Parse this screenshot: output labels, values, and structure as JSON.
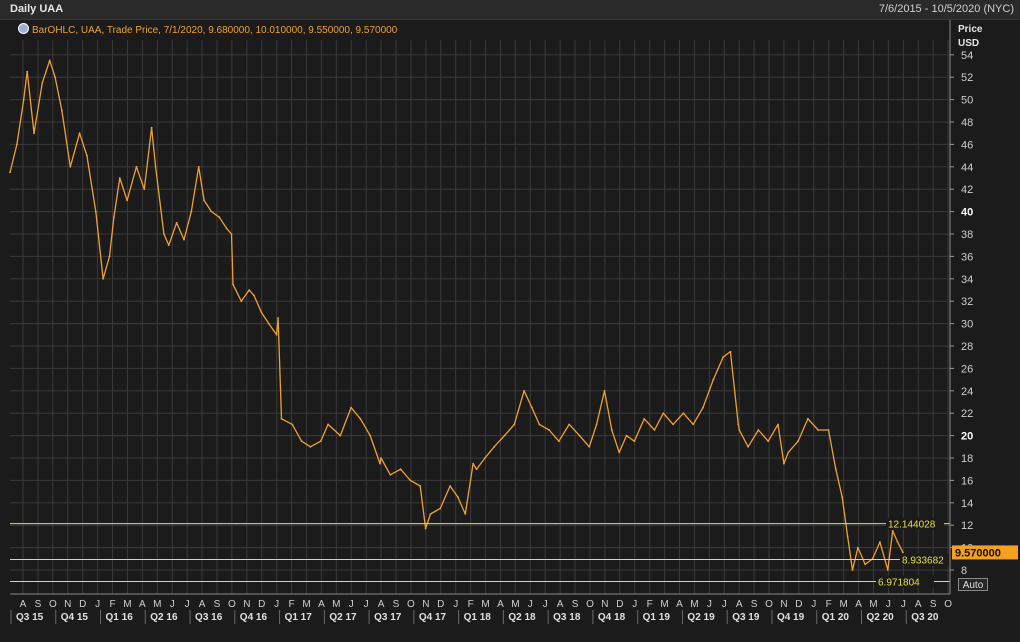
{
  "header": {
    "title": "Daily UAA",
    "date_range": "7/6/2015 - 10/5/2020 (NYC)"
  },
  "legend": {
    "text": "BarOHLC, UAA, Trade Price, 7/1/2020, 9.680000, 10.010000, 9.550000, 9.570000"
  },
  "auto_label": "Auto",
  "colors": {
    "background": "#1b1b1b",
    "grid": "#3a3a3a",
    "series": "#f0a030",
    "hline": "#e8e040",
    "last_price_bg": "#f5a020"
  },
  "chart_data": {
    "type": "line",
    "ylabel": "Price",
    "yunit": "USD",
    "ylim": [
      6,
      56
    ],
    "yticks": [
      8,
      10,
      12,
      14,
      16,
      18,
      20,
      22,
      24,
      26,
      28,
      30,
      32,
      34,
      36,
      38,
      40,
      42,
      44,
      46,
      48,
      50,
      52,
      54
    ],
    "bold_ticks": [
      20,
      40
    ],
    "x_months": [
      "A",
      "S",
      "O",
      "N",
      "D",
      "J",
      "F",
      "M",
      "A",
      "M",
      "J",
      "J",
      "A",
      "S",
      "O",
      "N",
      "D",
      "J",
      "F",
      "M",
      "A",
      "M",
      "J",
      "J",
      "A",
      "S",
      "O",
      "N",
      "D",
      "J",
      "F",
      "M",
      "A",
      "M",
      "J",
      "J",
      "A",
      "S",
      "O",
      "N",
      "D",
      "J",
      "F",
      "M",
      "A",
      "M",
      "J",
      "J",
      "A",
      "S",
      "O",
      "N",
      "D",
      "J",
      "F",
      "M",
      "A",
      "M",
      "J",
      "J",
      "A",
      "S",
      "O"
    ],
    "x_quarters": [
      "Q3 15",
      "Q4 15",
      "Q1 16",
      "Q2 16",
      "Q3 16",
      "Q4 16",
      "Q1 17",
      "Q2 17",
      "Q3 17",
      "Q4 17",
      "Q1 18",
      "Q2 18",
      "Q3 18",
      "Q4 18",
      "Q1 19",
      "Q2 19",
      "Q3 19",
      "Q4 19",
      "Q1 20",
      "Q2 20",
      "Q3 20"
    ],
    "x": [
      "2015-07-06",
      "2015-07-20",
      "2015-08-03",
      "2015-08-10",
      "2015-08-24",
      "2015-09-10",
      "2015-09-25",
      "2015-10-06",
      "2015-10-20",
      "2015-11-06",
      "2015-11-25",
      "2015-12-10",
      "2015-12-28",
      "2016-01-12",
      "2016-01-25",
      "2016-02-03",
      "2016-02-15",
      "2016-03-01",
      "2016-03-20",
      "2016-04-05",
      "2016-04-20",
      "2016-04-28",
      "2016-05-15",
      "2016-05-25",
      "2016-06-10",
      "2016-06-25",
      "2016-07-10",
      "2016-07-25",
      "2016-08-05",
      "2016-08-20",
      "2016-09-05",
      "2016-09-20",
      "2016-09-30",
      "2016-10-03",
      "2016-10-20",
      "2016-11-05",
      "2016-11-15",
      "2016-11-30",
      "2016-12-15",
      "2016-12-31",
      "2017-01-03",
      "2017-01-10",
      "2017-02-01",
      "2017-02-20",
      "2017-03-10",
      "2017-03-31",
      "2017-04-15",
      "2017-05-10",
      "2017-06-01",
      "2017-06-20",
      "2017-07-10",
      "2017-07-30",
      "2017-08-01",
      "2017-08-20",
      "2017-09-10",
      "2017-09-30",
      "2017-10-20",
      "2017-10-31",
      "2017-11-10",
      "2017-11-30",
      "2017-12-20",
      "2018-01-05",
      "2018-01-20",
      "2018-02-05",
      "2018-02-12",
      "2018-03-01",
      "2018-03-20",
      "2018-04-10",
      "2018-04-30",
      "2018-05-20",
      "2018-06-05",
      "2018-06-20",
      "2018-07-10",
      "2018-07-30",
      "2018-08-20",
      "2018-09-10",
      "2018-09-30",
      "2018-10-15",
      "2018-10-31",
      "2018-11-15",
      "2018-11-30",
      "2018-12-15",
      "2018-12-31",
      "2019-01-20",
      "2019-02-10",
      "2019-02-28",
      "2019-03-20",
      "2019-04-10",
      "2019-04-30",
      "2019-05-20",
      "2019-06-10",
      "2019-06-30",
      "2019-07-15",
      "2019-07-31",
      "2019-08-02",
      "2019-08-20",
      "2019-09-10",
      "2019-09-30",
      "2019-10-20",
      "2019-11-01",
      "2019-11-10",
      "2019-11-30",
      "2019-12-20",
      "2020-01-10",
      "2020-01-31",
      "2020-02-15",
      "2020-02-28",
      "2020-03-10",
      "2020-03-20",
      "2020-03-31",
      "2020-04-15",
      "2020-04-30",
      "2020-05-15",
      "2020-05-31",
      "2020-06-10",
      "2020-06-20",
      "2020-07-01"
    ],
    "values": [
      43.5,
      46,
      50,
      52.5,
      47,
      51.5,
      53.5,
      52,
      49,
      44,
      47,
      45,
      40,
      34,
      36,
      39.5,
      43,
      41,
      44,
      42,
      47.5,
      44,
      38,
      37,
      39,
      37.5,
      40,
      44,
      41,
      40,
      39.5,
      38.5,
      38,
      33.5,
      32,
      33,
      32.5,
      31,
      30,
      29,
      30.5,
      21.5,
      21,
      19.5,
      19,
      19.5,
      21,
      20,
      22.5,
      21.5,
      20,
      17.5,
      18,
      16.5,
      17,
      16,
      15.5,
      11.7,
      13,
      13.5,
      15.5,
      14.5,
      13,
      17.5,
      17,
      18,
      19,
      20,
      21,
      24,
      22.5,
      21,
      20.5,
      19.5,
      21,
      20,
      19,
      21,
      24,
      20.5,
      18.5,
      20,
      19.5,
      21.5,
      20.5,
      22,
      21,
      22,
      21,
      22.5,
      25,
      27,
      27.5,
      21,
      20.5,
      19,
      20.5,
      19.5,
      21,
      17.5,
      18.5,
      19.5,
      21.5,
      20.5,
      20.5,
      17,
      14.5,
      11,
      8,
      10,
      8.5,
      9,
      10.5,
      8,
      11.5,
      10.5,
      9.57
    ],
    "hlines": [
      {
        "value": 12.144028,
        "label": "12.144028"
      },
      {
        "value": 8.933682,
        "label": "8.933682"
      },
      {
        "value": 6.971804,
        "label": "6.971804"
      }
    ],
    "last_price": {
      "value": 9.57,
      "label": "9.570000"
    }
  }
}
